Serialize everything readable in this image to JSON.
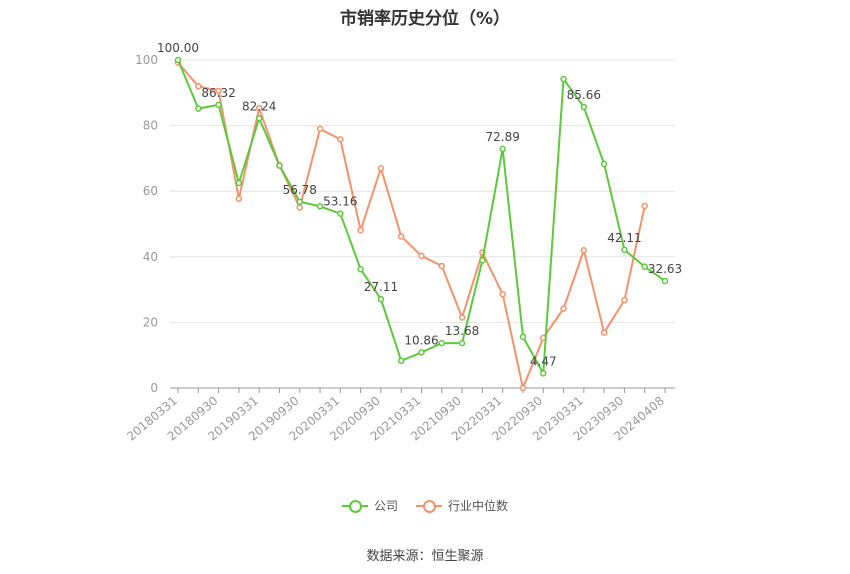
{
  "chart_data": {
    "type": "line",
    "title": "市销率历史分位（%）",
    "categories": [
      "20180331",
      "20180630",
      "20180930",
      "20181231",
      "20190331",
      "20190630",
      "20190930",
      "20191231",
      "20200331",
      "20200630",
      "20200930",
      "20201231",
      "20210331",
      "20210630",
      "20210930",
      "20211231",
      "20220331",
      "20220630",
      "20220930",
      "20221231",
      "20230331",
      "20230630",
      "20230930",
      "20231231",
      "20240408"
    ],
    "xtick_labels": [
      "20180331",
      "20180930",
      "20190331",
      "20190930",
      "20200331",
      "20200930",
      "20210331",
      "20210930",
      "20220331",
      "20220930",
      "20230331",
      "20230930",
      "20240408"
    ],
    "ylim": [
      0,
      100
    ],
    "yticks": [
      0,
      20,
      40,
      60,
      80,
      100
    ],
    "grid": true,
    "legend_position": "bottom",
    "series": [
      {
        "name": "公司",
        "color": "#5cc93b",
        "values": [
          100.0,
          85.2,
          86.32,
          62.5,
          82.24,
          67.8,
          56.78,
          55.4,
          53.16,
          36.2,
          27.11,
          8.3,
          10.86,
          13.68,
          13.68,
          38.9,
          72.89,
          15.6,
          4.47,
          94.2,
          85.66,
          68.3,
          42.11,
          37.0,
          32.63
        ],
        "data_labels": {
          "0": "100.00",
          "2": "86.32",
          "4": "82.24",
          "6": "56.78",
          "8": "53.16",
          "10": "27.11",
          "12": "10.86",
          "14": "13.68",
          "16": "72.89",
          "18": "4.47",
          "20": "85.66",
          "22": "42.11",
          "24": "32.63"
        }
      },
      {
        "name": "行业中位数",
        "color": "#f4936b",
        "values": [
          99.2,
          92.0,
          90.6,
          57.7,
          85.3,
          67.9,
          55.0,
          79.0,
          75.8,
          48.1,
          67.0,
          46.2,
          40.3,
          37.2,
          21.5,
          41.3,
          28.6,
          0.0,
          15.3,
          24.2,
          42.0,
          16.9,
          26.8,
          55.5,
          null
        ]
      }
    ]
  },
  "source_text": "数据来源：恒生聚源"
}
